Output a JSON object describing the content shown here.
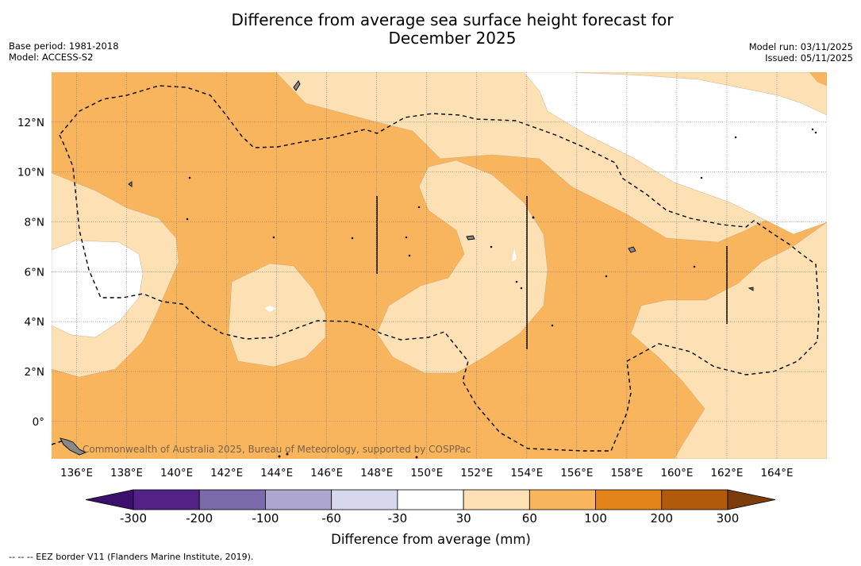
{
  "title_line1": "Difference from average sea surface height forecast for",
  "title_line2": "December 2025",
  "base_period": "Base period: 1981-2018",
  "model": "Model: ACCESS-S2",
  "model_run": "Model run: 03/11/2025",
  "issued": "Issued: 05/11/2025",
  "credit": "Commonwealth of Australia 2025, Bureau of Meteorology, supported by COSPPac",
  "footer": "--  --  -- EEZ border V11 (Flanders Marine Institute, 2019).",
  "colors": {
    "band_30_60": "#fde0b4",
    "band_60_100": "#f9b45e",
    "coast": "#000000",
    "eez": "#000000"
  },
  "map": {
    "lon_range": [
      135,
      166
    ],
    "lat_range": [
      -1.5,
      14
    ],
    "lon_ticks": [
      "136°E",
      "138°E",
      "140°E",
      "142°E",
      "144°E",
      "146°E",
      "148°E",
      "150°E",
      "152°E",
      "154°E",
      "156°E",
      "158°E",
      "160°E",
      "162°E",
      "164°E"
    ],
    "lat_ticks": [
      "0°",
      "2°N",
      "4°N",
      "6°N",
      "8°N",
      "10°N",
      "12°N"
    ]
  },
  "colorbar": {
    "label": "Difference from average (mm)",
    "ticks": [
      "-300",
      "-200",
      "-100",
      "-60",
      "-30",
      "30",
      "60",
      "100",
      "200",
      "300"
    ],
    "colors": [
      "#3d0f6d",
      "#522286",
      "#7b6baa",
      "#ada7d0",
      "#d8d8ec",
      "#ffffff",
      "#fde0b4",
      "#f9b45e",
      "#e2841a",
      "#b15a0c",
      "#7d3c0b"
    ]
  }
}
